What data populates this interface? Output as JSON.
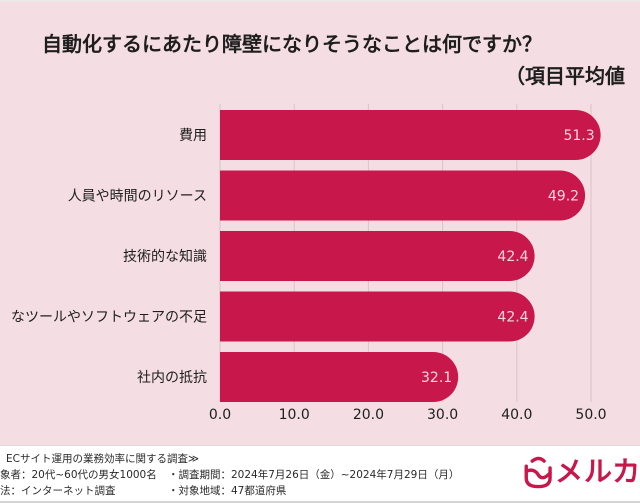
{
  "chart_data": {
    "type": "bar",
    "orientation": "horizontal",
    "title": "自動化するにあたり障壁になりそうなことは何ですか？",
    "subtitle": "（項目平均値",
    "categories": [
      "費用",
      "人員や時間のリソース",
      "技術的な知識",
      "なツールやソフトウェアの不足",
      "社内の抵抗"
    ],
    "values": [
      51.3,
      49.2,
      42.4,
      42.4,
      32.1
    ],
    "value_labels": [
      "51.3",
      "49.2",
      "42.4",
      "42.4",
      "32.1"
    ],
    "xlim": [
      0,
      50
    ],
    "xticks": [
      0,
      10,
      20,
      30,
      40,
      50
    ],
    "xtick_labels": [
      "0.0",
      "10.0",
      "20.0",
      "30.0",
      "40.0",
      "50.0"
    ],
    "xlabel": "",
    "ylabel": "",
    "grid": true,
    "colors": {
      "bar": "#c8174a",
      "background": "#f4dde3",
      "value_text": "#f6d7e0"
    }
  },
  "footer": {
    "line1": "ECサイト運用の業務効率に関する調査≫",
    "line2a": "象者：20代~60代の男女1000名",
    "line2b": "・調査期間：2024年7月26日（金）~2024年7月29日（月）",
    "line3a": "法：インターネット調査",
    "line3b": "・対象地域：47都道府県"
  },
  "logo": {
    "text": "メルカ",
    "color": "#c8174a"
  }
}
